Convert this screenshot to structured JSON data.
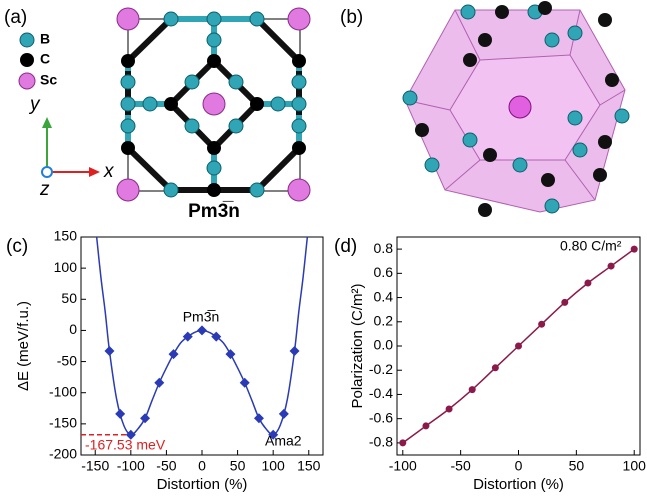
{
  "panels": {
    "a": {
      "label": "(a)",
      "legend": [
        "B",
        "C",
        "Sc"
      ],
      "axes": [
        "y",
        "z",
        "x"
      ],
      "space_group": "Pm3̅n"
    },
    "b": {
      "label": "(b)"
    }
  },
  "chart_data": [
    {
      "type": "line",
      "panel_label": "(c)",
      "xlabel": "Distortion (%)",
      "ylabel": "ΔE (meV/f.u.)",
      "xlim": [
        -170,
        170
      ],
      "xticks": [
        -150,
        -100,
        -50,
        0,
        50,
        100,
        150
      ],
      "ylim": [
        -200,
        150
      ],
      "yticks": [
        -200,
        -150,
        -100,
        -50,
        0,
        50,
        100,
        150
      ],
      "series": [
        {
          "color": "#2a3bb5",
          "marker": "none",
          "x": [
            -148,
            -142,
            -136,
            -130,
            -120,
            -110,
            -100,
            -90,
            -80,
            -70,
            -60,
            -50,
            -40,
            -30,
            -20,
            -10,
            0,
            10,
            20,
            30,
            40,
            50,
            60,
            70,
            80,
            90,
            100,
            110,
            120,
            130,
            136,
            142,
            148
          ],
          "values": [
            150,
            85,
            30,
            -33,
            -110,
            -152,
            -167.53,
            -158,
            -141,
            -112,
            -84,
            -60,
            -38,
            -20,
            -10,
            -3,
            0,
            -3,
            -10,
            -20,
            -38,
            -60,
            -84,
            -112,
            -141,
            -158,
            -167.53,
            -152,
            -110,
            -33,
            30,
            85,
            150
          ]
        },
        {
          "color": "#2a3bb5",
          "marker": "diamond",
          "line": false,
          "x": [
            -130,
            -115,
            -100,
            -80,
            -60,
            -40,
            -20,
            0,
            20,
            40,
            60,
            80,
            100,
            115,
            130
          ],
          "values": [
            -33,
            -134,
            -167.53,
            -141,
            -84,
            -38,
            -10,
            0,
            -10,
            -38,
            -84,
            -141,
            -167.53,
            -134,
            -33
          ]
        }
      ],
      "reference_line": {
        "value": -167.53,
        "label": "-167.53 meV",
        "color": "#e02020"
      },
      "annotations": [
        "Pm3̅n",
        "Ama2"
      ]
    },
    {
      "type": "line",
      "panel_label": "(d)",
      "xlabel": "Distortion (%)",
      "ylabel": "Polarization (C/m²)",
      "xlim": [
        -105,
        105
      ],
      "xticks": [
        -100,
        -50,
        0,
        50,
        100
      ],
      "ylim": [
        -0.9,
        0.9
      ],
      "yticks": [
        -0.8,
        -0.6,
        -0.4,
        -0.2,
        {
          "value": 0,
          "label": "0.0"
        },
        0.2,
        0.4,
        0.6,
        0.8
      ],
      "series": [
        {
          "color": "#8b1a4a",
          "marker": "circle",
          "x": [
            -100,
            -80,
            -60,
            -40,
            -20,
            0,
            20,
            40,
            60,
            80,
            100
          ],
          "values": [
            -0.8,
            -0.66,
            -0.52,
            -0.36,
            -0.18,
            0,
            0.18,
            0.36,
            0.52,
            0.66,
            0.8
          ]
        }
      ],
      "annotations": [
        "0.80 C/m²"
      ]
    }
  ]
}
